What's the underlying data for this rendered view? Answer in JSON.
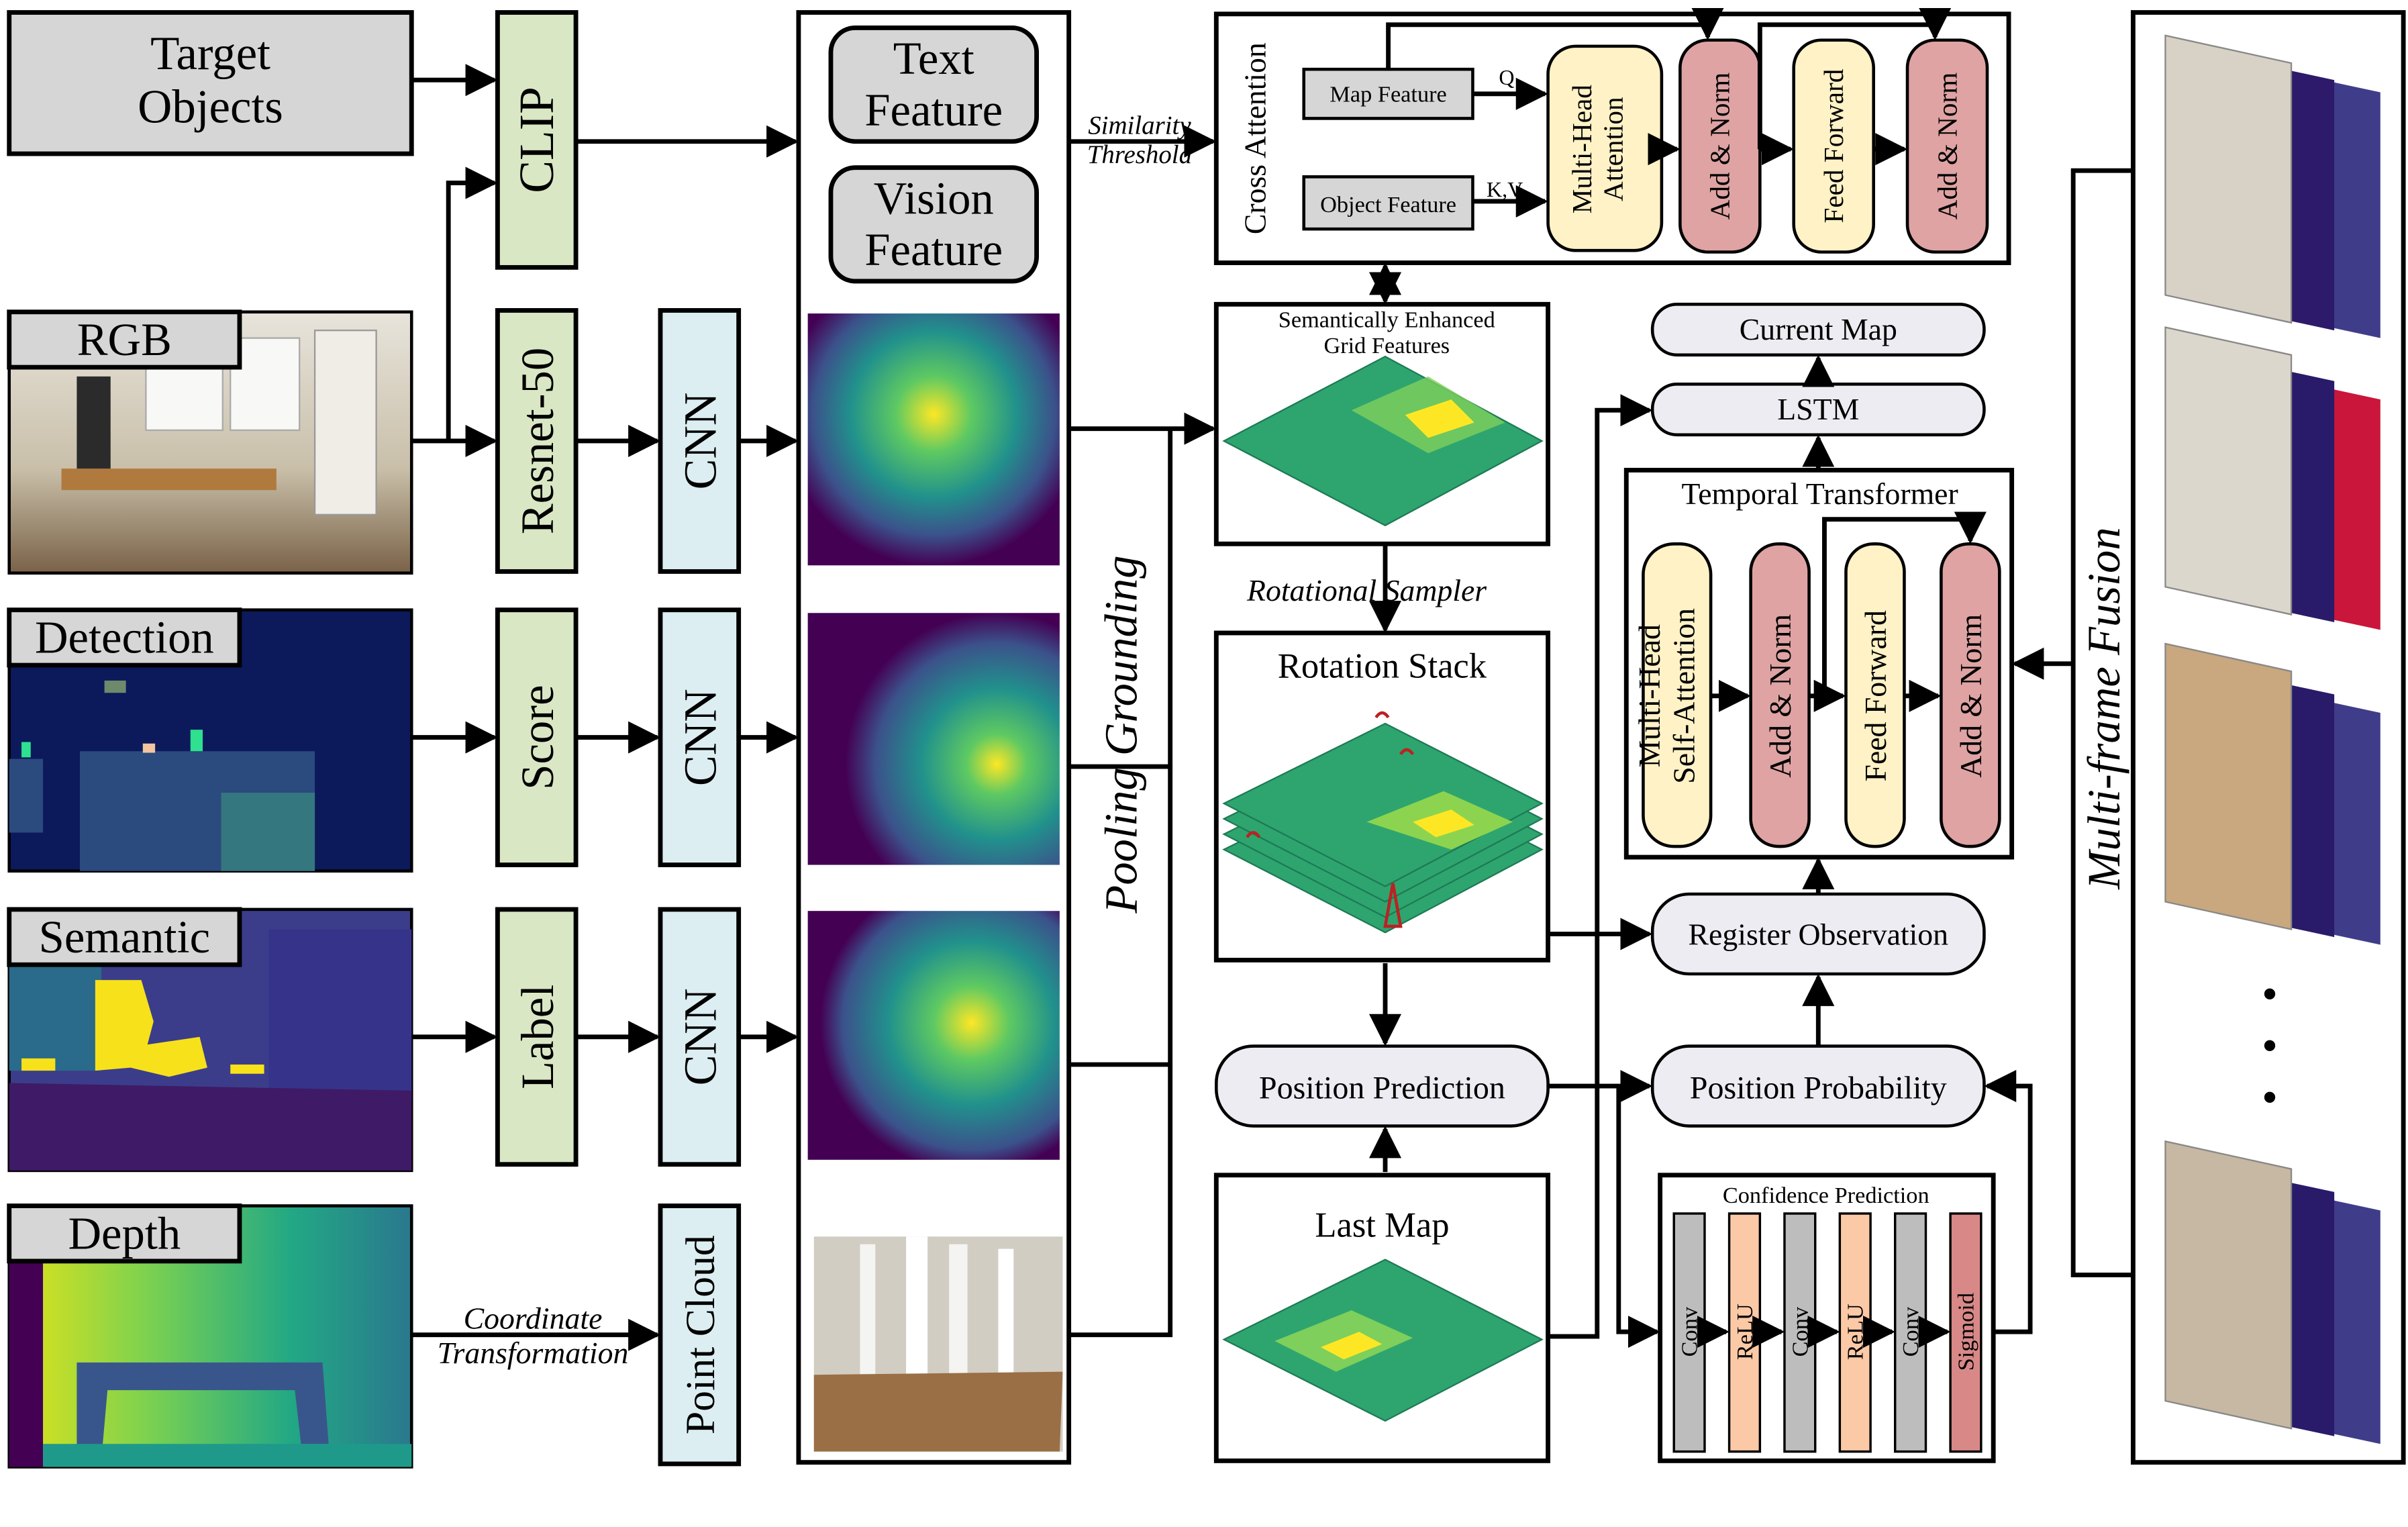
{
  "inputs": {
    "target_objects": "Target\nObjects",
    "rgb": "RGB",
    "detection": "Detection",
    "semantic": "Semantic",
    "depth": "Depth"
  },
  "encoders": {
    "clip": "CLIP",
    "resnet": "Resnet-50",
    "score": "Score",
    "label": "Label",
    "cnn": "CNN",
    "point_cloud": "Point Cloud"
  },
  "features": {
    "text": "Text\nFeature",
    "vision": "Vision\nFeature",
    "pooling_grounding": "Pooling Grounding"
  },
  "edges": {
    "similarity": "Similarity\nThreshold",
    "coordinate": "Coordinate\nTransformation",
    "q": "Q",
    "kv": "K,V",
    "rotational_sampler": "Rotational Sampler"
  },
  "cross_attention": {
    "title": "Cross Attention",
    "map_feature": "Map  Feature",
    "object_feature": "Object Feature",
    "mha": "Multi-Head\nAttention",
    "add_norm": "Add & Norm",
    "feed_forward": "Feed Forward"
  },
  "grid": {
    "title": "Semantically Enhanced\nGrid Features"
  },
  "rotation_stack": "Rotation Stack",
  "position_prediction": "Position Prediction",
  "last_map": "Last Map",
  "current_map": "Current Map",
  "lstm": "LSTM",
  "temporal": {
    "title": "Temporal Transformer",
    "mhsa": "Multi-Head\nSelf-Attention",
    "add_norm": "Add & Norm",
    "feed_forward": "Feed Forward"
  },
  "register_observation": "Register Observation",
  "position_probability": "Position Probability",
  "confidence": {
    "title": "Confidence Prediction",
    "layers": [
      "Conv",
      "ReLU",
      "Conv",
      "ReLU",
      "Conv",
      "Sigmoid"
    ]
  },
  "multiframe": "Multi-frame Fusion",
  "ellipsis": "•\n•\n•",
  "colors": {
    "gray": "#d6d6d6",
    "green": "#d9e7c4",
    "blue": "#dceef2",
    "yellow": "#fef2c6",
    "pink": "#dfa3a3",
    "lavender": "#ececf2",
    "orange": "#fbc9a6",
    "sigmoid": "#d98888",
    "conv": "#bdbdbd",
    "viridis_dark": "#440154",
    "viridis_mid": "#21918c",
    "viridis_light": "#fde725"
  }
}
